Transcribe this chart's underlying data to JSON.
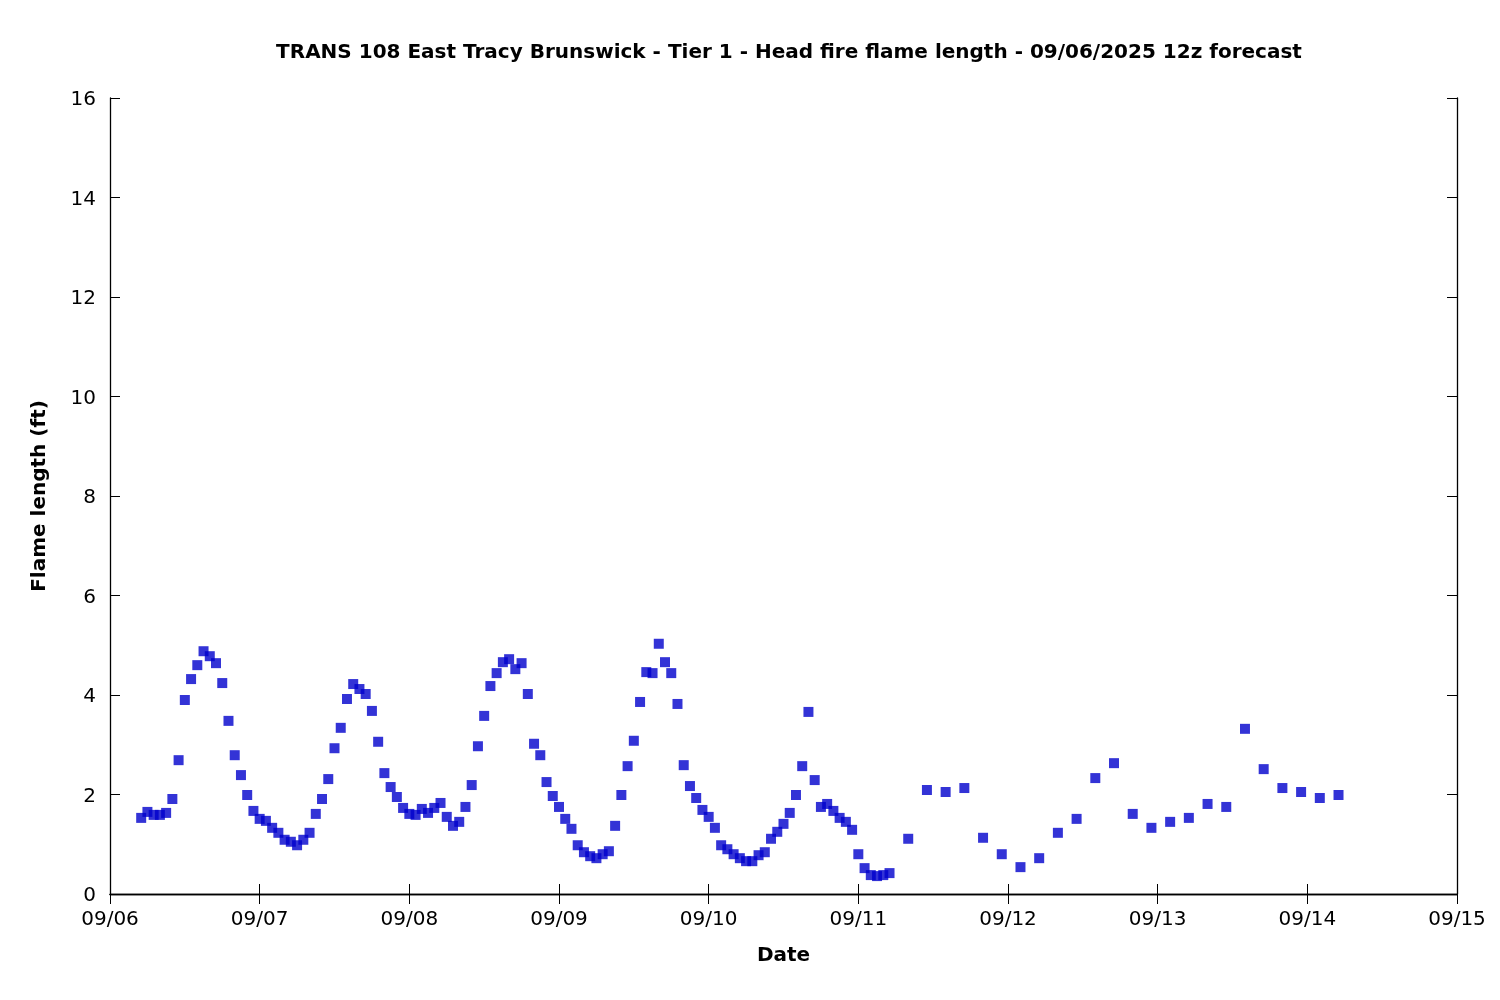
{
  "chart_data": {
    "type": "scatter",
    "title": "TRANS 108 East Tracy Brunswick - Tier 1 - Head fire flame length - 09/06/2025 12z forecast",
    "xlabel": "Date",
    "ylabel": "Flame length (ft)",
    "x": [
      "--09-06T05:00",
      "--09-06T06:00",
      "--09-06T07:00",
      "--09-06T08:00",
      "--09-06T09:00",
      "--09-06T10:00",
      "--09-06T11:00",
      "--09-06T12:00",
      "--09-06T13:00",
      "--09-06T14:00",
      "--09-06T15:00",
      "--09-06T16:00",
      "--09-06T17:00",
      "--09-06T18:00",
      "--09-06T19:00",
      "--09-06T20:00",
      "--09-06T21:00",
      "--09-06T22:00",
      "--09-06T23:00",
      "--09-07T00:00",
      "--09-07T01:00",
      "--09-07T02:00",
      "--09-07T03:00",
      "--09-07T04:00",
      "--09-07T05:00",
      "--09-07T06:00",
      "--09-07T07:00",
      "--09-07T08:00",
      "--09-07T09:00",
      "--09-07T10:00",
      "--09-07T11:00",
      "--09-07T12:00",
      "--09-07T13:00",
      "--09-07T14:00",
      "--09-07T15:00",
      "--09-07T16:00",
      "--09-07T17:00",
      "--09-07T18:00",
      "--09-07T19:00",
      "--09-07T20:00",
      "--09-07T21:00",
      "--09-07T22:00",
      "--09-07T23:00",
      "--09-08T00:00",
      "--09-08T01:00",
      "--09-08T02:00",
      "--09-08T03:00",
      "--09-08T04:00",
      "--09-08T05:00",
      "--09-08T06:00",
      "--09-08T07:00",
      "--09-08T08:00",
      "--09-08T09:00",
      "--09-08T10:00",
      "--09-08T11:00",
      "--09-08T12:00",
      "--09-08T13:00",
      "--09-08T14:00",
      "--09-08T15:00",
      "--09-08T16:00",
      "--09-08T17:00",
      "--09-08T18:00",
      "--09-08T19:00",
      "--09-08T20:00",
      "--09-08T21:00",
      "--09-08T22:00",
      "--09-08T23:00",
      "--09-09T00:00",
      "--09-09T01:00",
      "--09-09T02:00",
      "--09-09T03:00",
      "--09-09T04:00",
      "--09-09T05:00",
      "--09-09T06:00",
      "--09-09T07:00",
      "--09-09T08:00",
      "--09-09T09:00",
      "--09-09T10:00",
      "--09-09T11:00",
      "--09-09T12:00",
      "--09-09T13:00",
      "--09-09T14:00",
      "--09-09T15:00",
      "--09-09T16:00",
      "--09-09T17:00",
      "--09-09T18:00",
      "--09-09T19:00",
      "--09-09T20:00",
      "--09-09T21:00",
      "--09-09T22:00",
      "--09-09T23:00",
      "--09-10T00:00",
      "--09-10T01:00",
      "--09-10T02:00",
      "--09-10T03:00",
      "--09-10T04:00",
      "--09-10T05:00",
      "--09-10T06:00",
      "--09-10T07:00",
      "--09-10T08:00",
      "--09-10T09:00",
      "--09-10T10:00",
      "--09-10T11:00",
      "--09-10T12:00",
      "--09-10T13:00",
      "--09-10T14:00",
      "--09-10T15:00",
      "--09-10T16:00",
      "--09-10T17:00",
      "--09-10T18:00",
      "--09-10T19:00",
      "--09-10T20:00",
      "--09-10T21:00",
      "--09-10T22:00",
      "--09-10T23:00",
      "--09-11T00:00",
      "--09-11T01:00",
      "--09-11T02:00",
      "--09-11T03:00",
      "--09-11T04:00",
      "--09-11T05:00",
      "--09-11T08:00",
      "--09-11T11:00",
      "--09-11T14:00",
      "--09-11T17:00",
      "--09-11T20:00",
      "--09-11T23:00",
      "--09-12T02:00",
      "--09-12T05:00",
      "--09-12T08:00",
      "--09-12T11:00",
      "--09-12T14:00",
      "--09-12T17:00",
      "--09-12T20:00",
      "--09-12T23:00",
      "--09-13T02:00",
      "--09-13T05:00",
      "--09-13T08:00",
      "--09-13T11:00",
      "--09-13T14:00",
      "--09-13T17:00",
      "--09-13T20:00",
      "--09-13T23:00",
      "--09-14T02:00",
      "--09-14T05:00"
    ],
    "series": [
      {
        "color": "#0000cc",
        "values": [
          1.53,
          1.65,
          1.59,
          1.59,
          1.63,
          1.91,
          2.69,
          3.9,
          4.32,
          4.6,
          4.88,
          4.78,
          4.64,
          4.24,
          3.48,
          2.79,
          2.39,
          1.99,
          1.67,
          1.51,
          1.47,
          1.33,
          1.23,
          1.09,
          1.05,
          0.98,
          1.09,
          1.23,
          1.61,
          1.91,
          2.31,
          2.93,
          3.34,
          3.92,
          4.22,
          4.12,
          4.02,
          3.68,
          3.06,
          2.43,
          2.15,
          1.95,
          1.73,
          1.61,
          1.59,
          1.71,
          1.63,
          1.73,
          1.83,
          1.55,
          1.37,
          1.45,
          1.75,
          2.19,
          2.97,
          3.58,
          4.18,
          4.44,
          4.66,
          4.72,
          4.52,
          4.64,
          4.02,
          3.02,
          2.79,
          2.25,
          1.97,
          1.75,
          1.51,
          1.31,
          0.98,
          0.84,
          0.76,
          0.72,
          0.8,
          0.86,
          1.37,
          1.99,
          2.57,
          3.08,
          3.86,
          4.46,
          4.44,
          5.03,
          4.66,
          4.44,
          3.82,
          2.59,
          2.17,
          1.93,
          1.69,
          1.55,
          1.33,
          0.98,
          0.9,
          0.8,
          0.72,
          0.66,
          0.66,
          0.78,
          0.84,
          1.11,
          1.25,
          1.41,
          1.63,
          1.99,
          2.57,
          3.66,
          2.29,
          1.75,
          1.81,
          1.67,
          1.53,
          1.45,
          1.29,
          0.8,
          0.52,
          0.38,
          0.36,
          0.38,
          0.42,
          1.11,
          2.09,
          2.05,
          2.13,
          1.13,
          0.8,
          0.54,
          0.72,
          1.23,
          1.51,
          2.33,
          2.63,
          1.61,
          1.33,
          1.45,
          1.53,
          1.81,
          1.75,
          3.32,
          2.51,
          2.13,
          2.05,
          1.93,
          1.99
        ]
      }
    ],
    "xlim": [
      "--09-06",
      "--09-15"
    ],
    "xticks": [
      {
        "value": "--09-06",
        "label": "09/06"
      },
      {
        "value": "--09-07",
        "label": "09/07"
      },
      {
        "value": "--09-08",
        "label": "09/08"
      },
      {
        "value": "--09-09",
        "label": "09/09"
      },
      {
        "value": "--09-10",
        "label": "09/10"
      },
      {
        "value": "--09-11",
        "label": "09/11"
      },
      {
        "value": "--09-12",
        "label": "09/12"
      },
      {
        "value": "--09-13",
        "label": "09/13"
      },
      {
        "value": "--09-14",
        "label": "09/14"
      },
      {
        "value": "--09-15",
        "label": "09/15"
      }
    ],
    "ylim": [
      0,
      16
    ],
    "yticks": [
      0,
      2,
      4,
      6,
      8,
      10,
      12,
      14,
      16
    ],
    "marker": "square",
    "grid": false
  }
}
